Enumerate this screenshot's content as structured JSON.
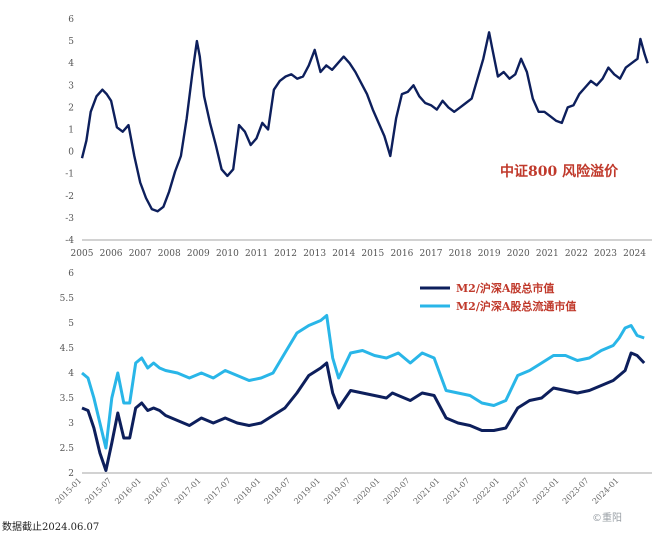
{
  "colors": {
    "navy": "#0d1f5c",
    "cyan": "#29b6e8",
    "annotation": "#c0392b",
    "axis": "#555555"
  },
  "chart_data": [
    {
      "type": "line",
      "annotation": "中证800 风险溢价",
      "x_ticks": [
        "2005",
        "2006",
        "2007",
        "2008",
        "2009",
        "2010",
        "2011",
        "2012",
        "2013",
        "2014",
        "2015",
        "2016",
        "2017",
        "2018",
        "2019",
        "2020",
        "2021",
        "2022",
        "2023",
        "2024"
      ],
      "y_ticks": [
        6,
        5,
        4,
        3,
        2,
        1,
        0,
        -1,
        -2,
        -3,
        -4
      ],
      "ylim": [
        -4,
        6
      ],
      "series": [
        {
          "color": "#0d1f5c",
          "x": [
            2005.0,
            2005.15,
            2005.3,
            2005.5,
            2005.7,
            2005.85,
            2006.0,
            2006.2,
            2006.4,
            2006.6,
            2006.8,
            2007.0,
            2007.2,
            2007.4,
            2007.6,
            2007.8,
            2008.0,
            2008.2,
            2008.4,
            2008.6,
            2008.8,
            2008.95,
            2009.05,
            2009.2,
            2009.4,
            2009.6,
            2009.8,
            2010.0,
            2010.2,
            2010.4,
            2010.6,
            2010.8,
            2011.0,
            2011.2,
            2011.4,
            2011.6,
            2011.8,
            2012.0,
            2012.2,
            2012.4,
            2012.6,
            2012.8,
            2013.0,
            2013.2,
            2013.4,
            2013.6,
            2013.8,
            2014.0,
            2014.2,
            2014.4,
            2014.6,
            2014.8,
            2015.0,
            2015.2,
            2015.4,
            2015.6,
            2015.8,
            2016.0,
            2016.2,
            2016.4,
            2016.6,
            2016.8,
            2017.0,
            2017.2,
            2017.4,
            2017.6,
            2017.8,
            2018.0,
            2018.2,
            2018.4,
            2018.6,
            2018.8,
            2019.0,
            2019.1,
            2019.3,
            2019.5,
            2019.7,
            2019.9,
            2020.1,
            2020.3,
            2020.5,
            2020.7,
            2020.9,
            2021.1,
            2021.3,
            2021.5,
            2021.7,
            2021.9,
            2022.1,
            2022.3,
            2022.5,
            2022.7,
            2022.9,
            2023.1,
            2023.3,
            2023.5,
            2023.7,
            2023.9,
            2024.1,
            2024.2,
            2024.35,
            2024.45
          ],
          "values": [
            -0.3,
            0.5,
            1.8,
            2.5,
            2.8,
            2.6,
            2.3,
            1.1,
            0.9,
            1.2,
            -0.2,
            -1.4,
            -2.1,
            -2.6,
            -2.7,
            -2.5,
            -1.8,
            -0.9,
            -0.2,
            1.5,
            3.6,
            5.0,
            4.3,
            2.5,
            1.3,
            0.3,
            -0.8,
            -1.1,
            -0.8,
            1.2,
            0.9,
            0.3,
            0.6,
            1.3,
            1.0,
            2.8,
            3.2,
            3.4,
            3.5,
            3.3,
            3.4,
            3.9,
            4.6,
            3.6,
            3.9,
            3.7,
            4.0,
            4.3,
            4.0,
            3.6,
            3.1,
            2.6,
            1.9,
            1.3,
            0.7,
            -0.2,
            1.5,
            2.6,
            2.7,
            3.0,
            2.5,
            2.2,
            2.1,
            1.9,
            2.3,
            2.0,
            1.8,
            2.0,
            2.2,
            2.4,
            3.3,
            4.2,
            5.4,
            4.7,
            3.4,
            3.6,
            3.3,
            3.5,
            4.2,
            3.6,
            2.4,
            1.8,
            1.8,
            1.6,
            1.4,
            1.3,
            2.0,
            2.1,
            2.6,
            2.9,
            3.2,
            3.0,
            3.3,
            3.8,
            3.5,
            3.3,
            3.8,
            4.0,
            4.2,
            5.1,
            4.4,
            4.0
          ]
        }
      ]
    },
    {
      "type": "line",
      "ylim": [
        2,
        6
      ],
      "y_ticks": [
        "6",
        "5.5",
        "5",
        "4.5",
        "4",
        "3.5",
        "3",
        "2.5",
        "2"
      ],
      "x_ticks": [
        "2015-01",
        "2015-07",
        "2016-01",
        "2016-07",
        "2017-01",
        "2017-07",
        "2018-01",
        "2018-07",
        "2019-01",
        "2019-07",
        "2020-01",
        "2020-07",
        "2021-01",
        "2021-07",
        "2022-01",
        "2022-07",
        "2023-01",
        "2023-07",
        "2024-01"
      ],
      "x": [
        2015.0,
        2015.1,
        2015.2,
        2015.3,
        2015.4,
        2015.5,
        2015.6,
        2015.7,
        2015.8,
        2015.9,
        2016.0,
        2016.1,
        2016.2,
        2016.3,
        2016.4,
        2016.6,
        2016.8,
        2017.0,
        2017.2,
        2017.4,
        2017.6,
        2017.8,
        2018.0,
        2018.2,
        2018.4,
        2018.6,
        2018.8,
        2019.0,
        2019.1,
        2019.2,
        2019.3,
        2019.5,
        2019.7,
        2019.9,
        2020.1,
        2020.2,
        2020.3,
        2020.5,
        2020.7,
        2020.9,
        2021.1,
        2021.3,
        2021.5,
        2021.7,
        2021.9,
        2022.1,
        2022.3,
        2022.5,
        2022.7,
        2022.9,
        2023.1,
        2023.3,
        2023.5,
        2023.7,
        2023.9,
        2024.0,
        2024.1,
        2024.2,
        2024.3,
        2024.42
      ],
      "series": [
        {
          "name": "M2/沪深A股总市值",
          "color": "#0d1f5c",
          "values": [
            3.3,
            3.25,
            2.9,
            2.4,
            2.05,
            2.6,
            3.2,
            2.7,
            2.7,
            3.3,
            3.4,
            3.25,
            3.3,
            3.25,
            3.15,
            3.05,
            2.95,
            3.1,
            3.0,
            3.1,
            3.0,
            2.95,
            3.0,
            3.15,
            3.3,
            3.6,
            3.95,
            4.1,
            4.2,
            3.6,
            3.3,
            3.65,
            3.6,
            3.55,
            3.5,
            3.6,
            3.55,
            3.45,
            3.6,
            3.55,
            3.1,
            3.0,
            2.95,
            2.85,
            2.85,
            2.9,
            3.3,
            3.45,
            3.5,
            3.7,
            3.65,
            3.6,
            3.65,
            3.75,
            3.85,
            3.95,
            4.05,
            4.4,
            4.35,
            4.2
          ]
        },
        {
          "name": "M2/沪深A股总流通市值",
          "color": "#29b6e8",
          "values": [
            4.0,
            3.9,
            3.5,
            3.0,
            2.5,
            3.5,
            4.0,
            3.4,
            3.4,
            4.2,
            4.3,
            4.1,
            4.2,
            4.1,
            4.05,
            4.0,
            3.9,
            4.0,
            3.9,
            4.05,
            3.95,
            3.85,
            3.9,
            4.0,
            4.4,
            4.8,
            4.95,
            5.05,
            5.15,
            4.3,
            3.9,
            4.4,
            4.45,
            4.35,
            4.3,
            4.35,
            4.4,
            4.2,
            4.4,
            4.3,
            3.65,
            3.6,
            3.55,
            3.4,
            3.35,
            3.45,
            3.95,
            4.05,
            4.2,
            4.35,
            4.35,
            4.25,
            4.3,
            4.45,
            4.55,
            4.7,
            4.9,
            4.95,
            4.75,
            4.7
          ]
        }
      ]
    }
  ],
  "footnote": "数据截止2024.06.07",
  "watermark": "©重阳"
}
